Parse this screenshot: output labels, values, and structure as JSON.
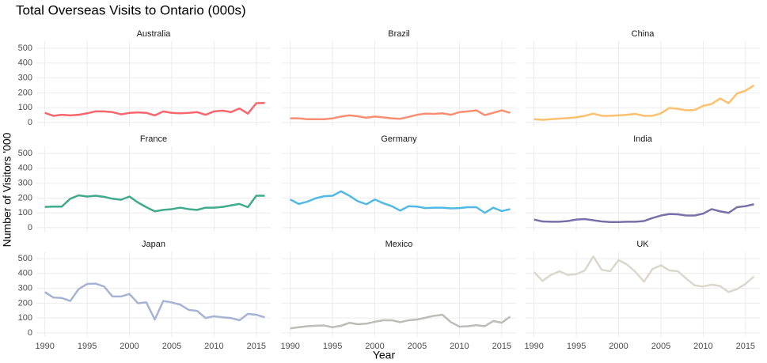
{
  "chart_data": {
    "type": "line",
    "title": "Total Overseas Visits to Ontario (000s)",
    "xlabel": "Year",
    "ylabel": "Number of Visitors '000",
    "x": [
      1990,
      1991,
      1992,
      1993,
      1994,
      1995,
      1996,
      1997,
      1998,
      1999,
      2000,
      2001,
      2002,
      2003,
      2004,
      2005,
      2006,
      2007,
      2008,
      2009,
      2010,
      2011,
      2012,
      2013,
      2014,
      2015,
      2016
    ],
    "xlim": [
      1989,
      2016.7
    ],
    "xticks": [
      1990,
      1995,
      2000,
      2005,
      2010,
      2015
    ],
    "ylim": [
      -27,
      548
    ],
    "yticks": [
      0,
      100,
      200,
      300,
      400,
      500
    ],
    "grid": true,
    "series": [
      {
        "name": "Australia",
        "color": "#f8666e",
        "values": [
          65,
          45,
          52,
          48,
          52,
          62,
          75,
          75,
          70,
          55,
          65,
          68,
          65,
          48,
          75,
          65,
          62,
          65,
          70,
          52,
          75,
          80,
          70,
          95,
          60,
          130,
          132
        ]
      },
      {
        "name": "Brazil",
        "color": "#fa8e72",
        "values": [
          28,
          28,
          22,
          22,
          22,
          28,
          40,
          48,
          42,
          32,
          40,
          35,
          28,
          25,
          38,
          52,
          60,
          58,
          62,
          52,
          70,
          75,
          82,
          50,
          65,
          82,
          65
        ]
      },
      {
        "name": "China",
        "color": "#fdc06e",
        "values": [
          22,
          18,
          22,
          26,
          30,
          35,
          45,
          60,
          45,
          45,
          48,
          52,
          58,
          45,
          45,
          62,
          98,
          92,
          82,
          85,
          112,
          125,
          162,
          130,
          195,
          215,
          250
        ]
      },
      {
        "name": "France",
        "color": "#3faa8c",
        "values": [
          140,
          142,
          142,
          195,
          218,
          210,
          215,
          208,
          195,
          188,
          210,
          170,
          138,
          110,
          120,
          125,
          135,
          125,
          120,
          135,
          135,
          140,
          150,
          160,
          138,
          215,
          215
        ]
      },
      {
        "name": "Germany",
        "color": "#52b9e5",
        "values": [
          190,
          160,
          175,
          198,
          212,
          215,
          245,
          215,
          178,
          158,
          190,
          165,
          145,
          115,
          145,
          142,
          132,
          135,
          135,
          130,
          132,
          138,
          138,
          100,
          135,
          112,
          125
        ]
      },
      {
        "name": "India",
        "color": "#7a6fa8",
        "values": [
          55,
          42,
          40,
          40,
          45,
          55,
          58,
          50,
          42,
          38,
          38,
          40,
          40,
          45,
          65,
          82,
          92,
          90,
          82,
          82,
          95,
          125,
          110,
          100,
          138,
          145,
          158
        ]
      },
      {
        "name": "Japan",
        "color": "#a7b3d3",
        "values": [
          275,
          238,
          235,
          215,
          295,
          330,
          332,
          312,
          245,
          245,
          262,
          200,
          205,
          90,
          215,
          205,
          190,
          155,
          148,
          100,
          112,
          105,
          100,
          85,
          128,
          122,
          105
        ]
      },
      {
        "name": "Mexico",
        "color": "#bdbdb7",
        "values": [
          30,
          38,
          45,
          48,
          50,
          38,
          48,
          68,
          58,
          62,
          75,
          85,
          85,
          72,
          85,
          90,
          102,
          115,
          122,
          72,
          42,
          45,
          52,
          45,
          80,
          68,
          110
        ]
      },
      {
        "name": "UK",
        "color": "#dad8cc",
        "values": [
          410,
          350,
          390,
          415,
          390,
          395,
          420,
          515,
          425,
          415,
          490,
          460,
          410,
          345,
          430,
          455,
          420,
          415,
          365,
          320,
          312,
          325,
          315,
          275,
          295,
          330,
          380
        ]
      }
    ]
  }
}
